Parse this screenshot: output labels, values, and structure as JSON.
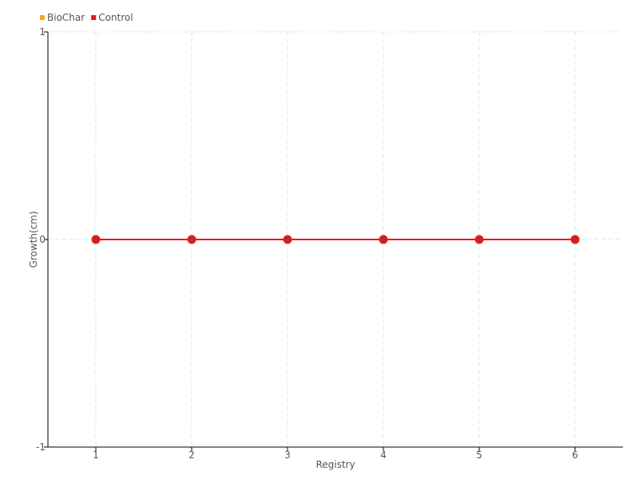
{
  "chart_data": {
    "type": "line",
    "title": "",
    "xlabel": "Registry",
    "ylabel": "Growth(cm)",
    "x": [
      1,
      2,
      3,
      4,
      5,
      6
    ],
    "xlim": [
      0.5,
      6.5
    ],
    "ylim": [
      -1,
      1
    ],
    "yticks": [
      -1,
      0,
      1
    ],
    "grid": true,
    "legend": "top-left",
    "series": [
      {
        "name": "BioChar",
        "color": "#f5a623",
        "values": [
          0,
          0,
          0,
          0,
          0,
          0
        ]
      },
      {
        "name": "Control",
        "color": "#e8141e",
        "values": [
          0,
          0,
          0,
          0,
          0,
          0
        ]
      }
    ]
  }
}
